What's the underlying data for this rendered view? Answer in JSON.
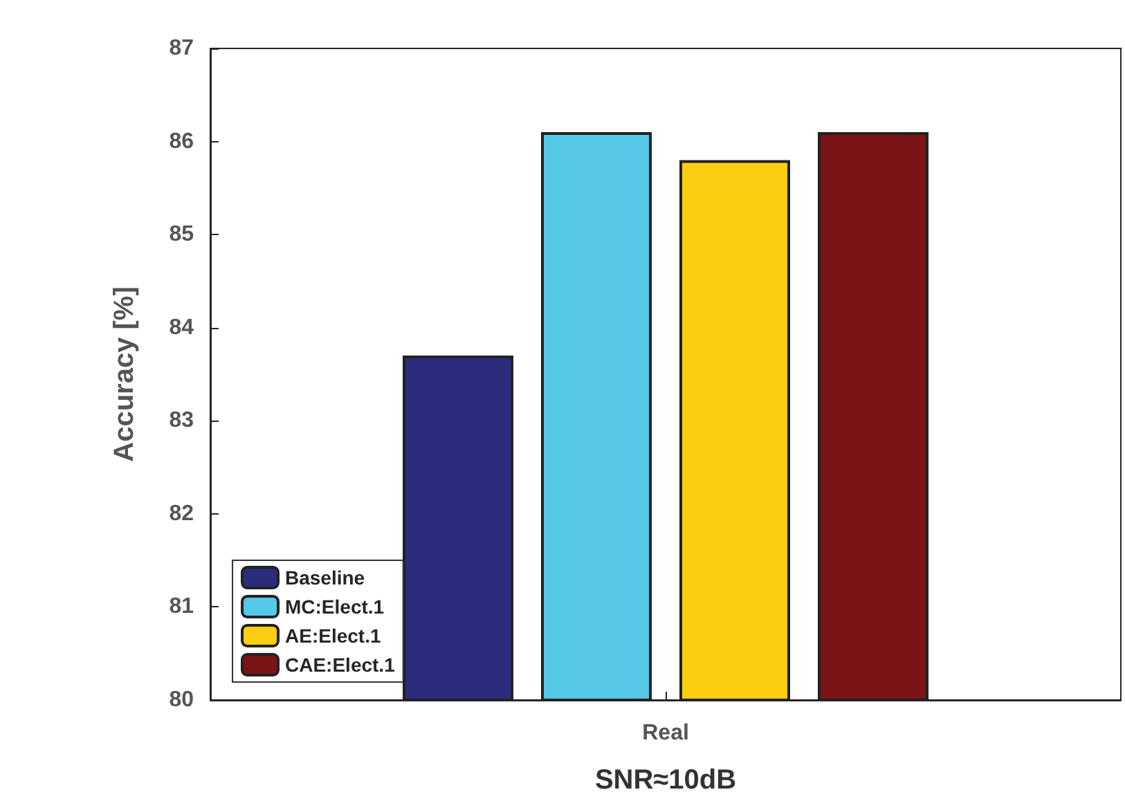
{
  "chart_data": {
    "type": "bar",
    "categories": [
      "Real"
    ],
    "xlabel": "SNR≈10dB",
    "ylabel": "Accuracy [%]",
    "series": [
      {
        "name": "Baseline",
        "color": "#2b2c7c",
        "values": [
          83.7
        ]
      },
      {
        "name": "MC:Elect.1",
        "color": "#56c8e8",
        "values": [
          86.1
        ]
      },
      {
        "name": "AE:Elect.1",
        "color": "#fcce10",
        "values": [
          85.8
        ]
      },
      {
        "name": "CAE:Elect.1",
        "color": "#7b1416",
        "values": [
          86.1
        ]
      }
    ],
    "ylim": [
      80,
      87
    ],
    "yticks": [
      80,
      81,
      82,
      83,
      84,
      85,
      86,
      87
    ],
    "grid": false,
    "legend": "bottom left"
  }
}
